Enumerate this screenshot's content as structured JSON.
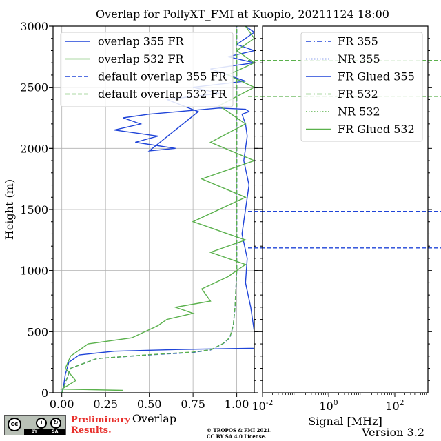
{
  "chart_data": [
    {
      "type": "line",
      "title": "Overlap for PollyXT_FMI at Kuopio, 20211124 18:00",
      "xlabel": "Overlap",
      "ylabel": "Height (m)",
      "xlim": [
        -0.05,
        1.1
      ],
      "ylim": [
        0,
        3000
      ],
      "xticks": [
        "0.00",
        "0.25",
        "0.50",
        "0.75",
        "1.00"
      ],
      "yticks": [
        "0",
        "500",
        "1000",
        "1500",
        "2000",
        "2500",
        "3000"
      ],
      "grid": true,
      "legend_position": "top",
      "colors": {
        "blue": "#1f44d8",
        "green": "#5ab14c"
      },
      "series": [
        {
          "name": "overlap 355 FR",
          "style": "solid",
          "color": "#1f44d8",
          "x": [
            0.0,
            0.01,
            0.02,
            0.04,
            0.1,
            0.3,
            0.7,
            1.1,
            1.1,
            1.08,
            1.05,
            1.06,
            1.03,
            1.05,
            1.07,
            1.04,
            1.06,
            1.05,
            1.03,
            1.07,
            1.05,
            0.9,
            0.5,
            0.35,
            0.45,
            0.3,
            0.55,
            0.42,
            0.65,
            0.5,
            0.78,
            0.6,
            0.9,
            0.75,
            1.05,
            0.85,
            1.1,
            0.95,
            1.1,
            1.0,
            1.1,
            1.05
          ],
          "y": [
            0,
            50,
            150,
            250,
            310,
            340,
            355,
            365,
            500,
            700,
            900,
            1100,
            1300,
            1500,
            1700,
            1900,
            2100,
            2200,
            2280,
            2300,
            2320,
            2330,
            2280,
            2250,
            2200,
            2150,
            2100,
            2050,
            2000,
            1980,
            2300,
            2400,
            2450,
            2500,
            2550,
            2650,
            2700,
            2750,
            2800,
            2850,
            2950,
            3000
          ]
        },
        {
          "name": "overlap 532 FR",
          "style": "solid",
          "color": "#5ab14c",
          "x": [
            0.35,
            0.0,
            0.08,
            0.02,
            0.05,
            0.15,
            0.4,
            0.55,
            0.6,
            0.75,
            0.65,
            0.85,
            0.8,
            0.95,
            1.05,
            0.85,
            1.05,
            0.75,
            1.05,
            0.8,
            1.1,
            0.85,
            1.05,
            0.9,
            1.1,
            0.95,
            1.1,
            1.0,
            1.1,
            1.05
          ],
          "y": [
            20,
            30,
            100,
            200,
            300,
            400,
            450,
            550,
            600,
            650,
            700,
            750,
            850,
            950,
            1050,
            1150,
            1250,
            1400,
            1600,
            1750,
            1900,
            2050,
            2200,
            2350,
            2500,
            2600,
            2700,
            2800,
            2900,
            3000
          ]
        },
        {
          "name": "default overlap 355 FR",
          "style": "dashed",
          "color": "#1f44d8",
          "x": [
            0.0,
            0.05,
            0.2,
            0.5,
            0.75,
            0.85,
            0.92,
            0.96,
            0.98,
            0.99,
            1.0,
            1.0,
            1.0
          ],
          "y": [
            0,
            200,
            280,
            310,
            330,
            350,
            400,
            450,
            550,
            700,
            1000,
            2000,
            3000
          ]
        },
        {
          "name": "default overlap 532 FR",
          "style": "dashed",
          "color": "#5ab14c",
          "x": [
            0.0,
            0.05,
            0.2,
            0.5,
            0.75,
            0.85,
            0.92,
            0.96,
            0.98,
            0.99,
            1.0,
            1.0,
            1.0
          ],
          "y": [
            0,
            200,
            280,
            312,
            333,
            352,
            402,
            452,
            552,
            702,
            1000,
            2000,
            3000
          ]
        }
      ]
    },
    {
      "type": "line",
      "xlabel": "Signal [MHz]",
      "xscale": "log",
      "xlim": [
        0.01,
        1000
      ],
      "ylim": [
        0,
        3000
      ],
      "xticks": [
        "10^-2",
        "10^0",
        "10^2"
      ],
      "legend_position": "top-right",
      "reference_lines": [
        {
          "y": 2720,
          "style": "dashed",
          "color": "#5ab14c"
        },
        {
          "y": 2425,
          "style": "dashed",
          "color": "#5ab14c"
        },
        {
          "y": 1485,
          "style": "dashed",
          "color": "#1f44d8"
        },
        {
          "y": 1185,
          "style": "dashed",
          "color": "#1f44d8"
        }
      ],
      "series": [
        {
          "name": "FR 355",
          "style": "dashdot",
          "color": "#1f44d8",
          "x": [],
          "y": []
        },
        {
          "name": "NR 355",
          "style": "dotted",
          "color": "#1f44d8",
          "x": [],
          "y": []
        },
        {
          "name": "FR Glued 355",
          "style": "solid",
          "color": "#1f44d8",
          "x": [],
          "y": []
        },
        {
          "name": "FR 532",
          "style": "dashdot",
          "color": "#5ab14c",
          "x": [],
          "y": []
        },
        {
          "name": "NR 532",
          "style": "dotted",
          "color": "#5ab14c",
          "x": [],
          "y": []
        },
        {
          "name": "FR Glued 532",
          "style": "solid",
          "color": "#5ab14c",
          "x": [],
          "y": []
        }
      ]
    }
  ],
  "footer": {
    "license_badge": "cc",
    "license_by": "BY",
    "license_sa": "SA",
    "preliminary_line1": "Preliminary",
    "preliminary_line2": "Results.",
    "copyright_line1": "© TROPOS & FMI 2021.",
    "copyright_line2": "CC BY SA 4.0 License.",
    "version": "Version 3.2"
  }
}
